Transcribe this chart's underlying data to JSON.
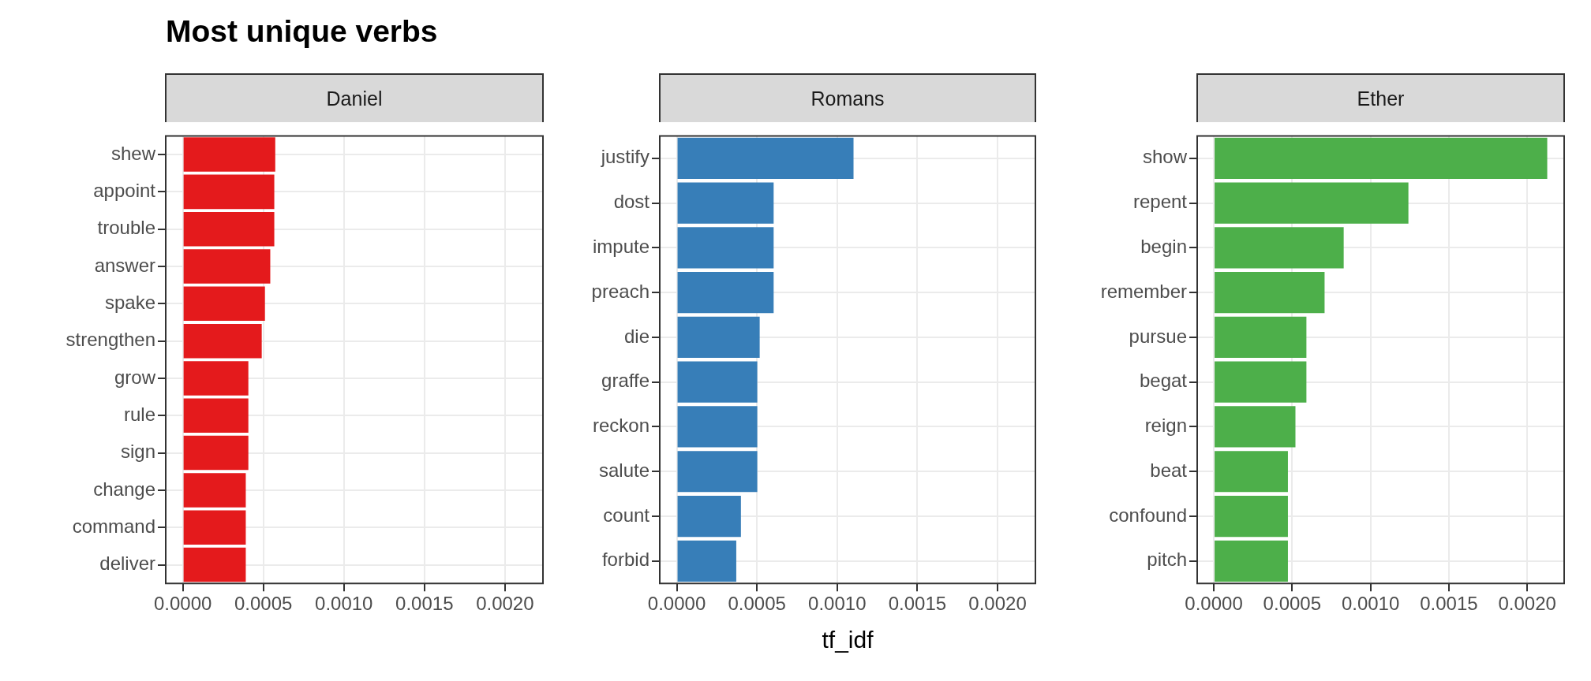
{
  "chart_data": [
    {
      "type": "bar",
      "orientation": "horizontal",
      "title": "Most unique verbs",
      "subtitle": "Daniel",
      "grid": true,
      "color": "#e41a1c",
      "categories": [
        "shew",
        "appoint",
        "trouble",
        "answer",
        "spake",
        "strengthen",
        "grow",
        "rule",
        "sign",
        "change",
        "command",
        "deliver"
      ],
      "values": [
        0.000574,
        0.000568,
        0.000568,
        0.000543,
        0.00051,
        0.00049,
        0.000407,
        0.000407,
        0.000407,
        0.000391,
        0.000391,
        0.000391
      ],
      "xlim": [
        -0.000106,
        0.002236
      ],
      "xticks": [
        {
          "value": 0,
          "label": "0.0000"
        },
        {
          "value": 0.0005,
          "label": "0.0005"
        },
        {
          "value": 0.001,
          "label": "0.0010"
        },
        {
          "value": 0.0015,
          "label": "0.0015"
        },
        {
          "value": 0.002,
          "label": "0.0020"
        }
      ]
    },
    {
      "type": "bar",
      "orientation": "horizontal",
      "subtitle": "Romans",
      "xlabel": "tf_idf",
      "grid": true,
      "color": "#377eb8",
      "categories": [
        "justify",
        "dost",
        "impute",
        "preach",
        "die",
        "graffe",
        "reckon",
        "salute",
        "count",
        "forbid"
      ],
      "values": [
        0.001102,
        0.000604,
        0.000604,
        0.000604,
        0.000517,
        0.000502,
        0.000502,
        0.000502,
        0.0004,
        0.000371
      ],
      "xlim": [
        -0.000106,
        0.002236
      ],
      "xticks": [
        {
          "value": 0,
          "label": "0.0000"
        },
        {
          "value": 0.0005,
          "label": "0.0005"
        },
        {
          "value": 0.001,
          "label": "0.0010"
        },
        {
          "value": 0.0015,
          "label": "0.0015"
        },
        {
          "value": 0.002,
          "label": "0.0020"
        }
      ]
    },
    {
      "type": "bar",
      "orientation": "horizontal",
      "subtitle": "Ether",
      "grid": true,
      "color": "#4daf4a",
      "categories": [
        "show",
        "repent",
        "begin",
        "remember",
        "pursue",
        "begat",
        "reign",
        "beat",
        "confound",
        "pitch"
      ],
      "values": [
        0.002128,
        0.001242,
        0.000829,
        0.000707,
        0.000591,
        0.000591,
        0.000521,
        0.000473,
        0.000473,
        0.000473
      ],
      "xlim": [
        -0.000106,
        0.002236
      ],
      "xticks": [
        {
          "value": 0,
          "label": "0.0000"
        },
        {
          "value": 0.0005,
          "label": "0.0005"
        },
        {
          "value": 0.001,
          "label": "0.0010"
        },
        {
          "value": 0.0015,
          "label": "0.0015"
        },
        {
          "value": 0.002,
          "label": "0.0020"
        }
      ]
    }
  ]
}
